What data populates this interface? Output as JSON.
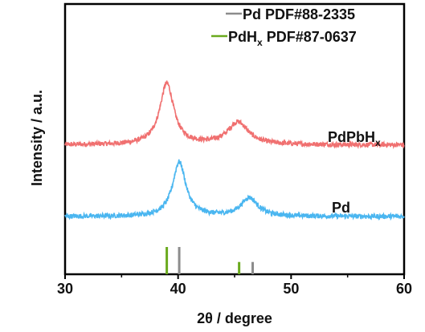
{
  "chart_data": {
    "type": "line",
    "xlabel": "2θ / degree",
    "ylabel": "Intensity / a.u.",
    "xlim": [
      30,
      60
    ],
    "x_ticks": [
      "30",
      "40",
      "50",
      "60"
    ],
    "y_ticks": "none",
    "grid": false,
    "legend_position": "top-right",
    "legend": [
      {
        "label": "Pd PDF#88-2335",
        "color": "#8c8c8c"
      },
      {
        "label_main": "PdH",
        "label_sub": "x",
        "label_tail": " PDF#87-0637",
        "color": "#6aaa1e"
      }
    ],
    "series": [
      {
        "name": "PdPbHx",
        "label_main": "PdPbH",
        "label_sub": "x",
        "color": "#f07070",
        "baseline": 1.05,
        "peaks": [
          {
            "center": 39.0,
            "height": 0.9,
            "width": 0.75
          },
          {
            "center": 45.3,
            "height": 0.33,
            "width": 1.1
          }
        ]
      },
      {
        "name": "Pd",
        "label_main": "Pd",
        "label_sub": "",
        "color": "#4ab6f0",
        "baseline": 0.0,
        "peaks": [
          {
            "center": 40.1,
            "height": 0.8,
            "width": 0.7
          },
          {
            "center": 46.3,
            "height": 0.27,
            "width": 0.9
          }
        ]
      }
    ],
    "reference_lines": [
      {
        "set": "PdHx PDF#87-0637",
        "color": "#6aaa1e",
        "positions": [
          39.0,
          45.4
        ],
        "intensities": [
          1.0,
          0.45
        ]
      },
      {
        "set": "Pd PDF#88-2335",
        "color": "#8c8c8c",
        "positions": [
          40.1,
          46.6
        ],
        "intensities": [
          1.0,
          0.45
        ]
      }
    ]
  }
}
